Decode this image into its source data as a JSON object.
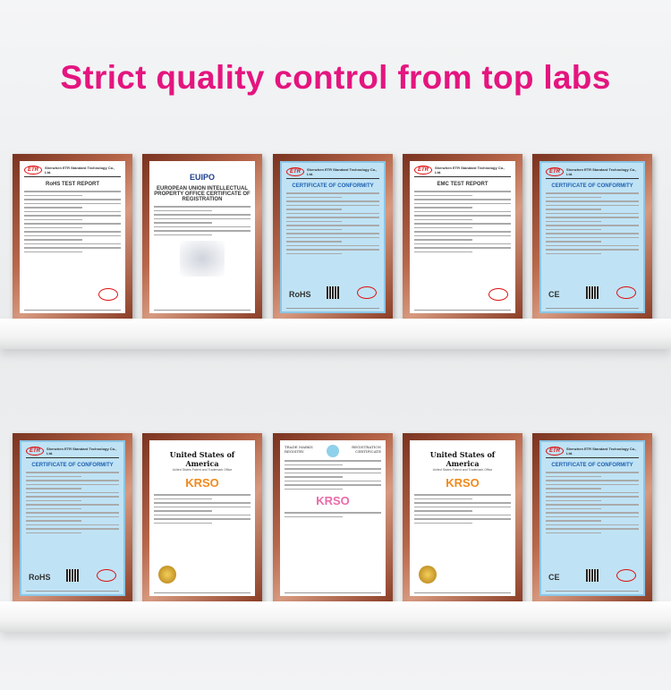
{
  "title": "Strict quality control from top labs",
  "certificates_top": [
    {
      "heading": "Shenzhen ETR Standard Technology Co., Ltd.",
      "title": "RoHS TEST REPORT",
      "logo": "ETR",
      "style": "white"
    },
    {
      "heading": "EUIPO",
      "title": "EUROPEAN UNION INTELLECTUAL PROPERTY OFFICE CERTIFICATE OF REGISTRATION",
      "logo": "EUIPO",
      "style": "white"
    },
    {
      "heading": "Shenzhen ETR Standard Technology Co., Ltd.",
      "title": "CERTIFICATE OF CONFORMITY",
      "logo": "ETR",
      "style": "blue",
      "mark": "RoHS"
    },
    {
      "heading": "Shenzhen ETR Standard Technology Co., Ltd.",
      "title": "EMC TEST REPORT",
      "logo": "ETR",
      "style": "white"
    },
    {
      "heading": "Shenzhen ETR Standard Technology Co., Ltd.",
      "title": "CERTIFICATE OF CONFORMITY",
      "logo": "ETR",
      "style": "blue",
      "mark": "CE"
    }
  ],
  "certificates_bottom": [
    {
      "heading": "Shenzhen ETR Standard Technology Co., Ltd.",
      "title": "CERTIFICATE OF CONFORMITY",
      "logo": "ETR",
      "style": "blue",
      "mark": "RoHS"
    },
    {
      "heading": "United States of America",
      "title": "United States Patent and Trademark Office",
      "logo": "KRSO",
      "style": "us"
    },
    {
      "heading": "TRADE MARKS REGISTRY",
      "title": "REGISTRATION CERTIFICATE",
      "logo": "KRSO",
      "style": "uk"
    },
    {
      "heading": "United States of America",
      "title": "United States Patent and Trademark Office",
      "logo": "KRSO",
      "style": "us"
    },
    {
      "heading": "Shenzhen ETR Standard Technology Co., Ltd.",
      "title": "CERTIFICATE OF CONFORMITY",
      "logo": "ETR",
      "style": "blue",
      "mark": "CE"
    }
  ]
}
